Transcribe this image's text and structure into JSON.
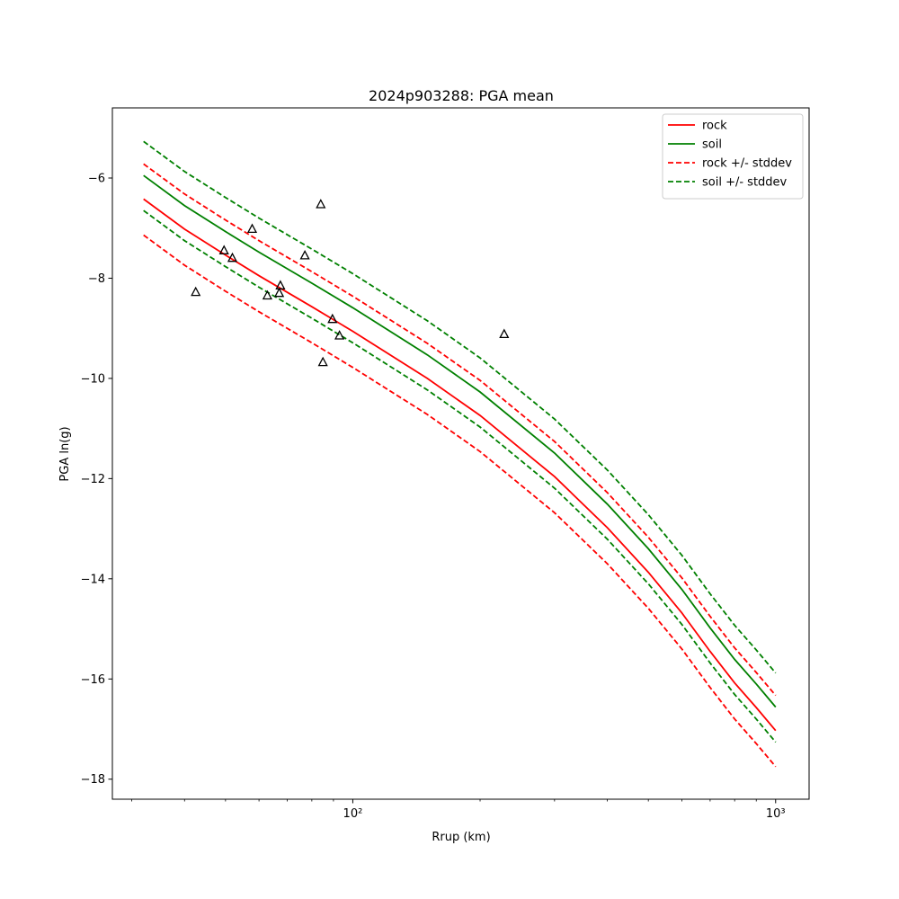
{
  "chart_data": {
    "type": "line",
    "title": "2024p903288: PGA mean",
    "xlabel": "Rrup (km)",
    "ylabel": "PGA ln(g)",
    "x_scale": "log",
    "xlim": [
      27,
      1200
    ],
    "ylim": [
      -18.4,
      -4.6
    ],
    "grid": false,
    "legend_position": "top-right",
    "x_ticks": [
      {
        "value": 100,
        "label": "10²"
      },
      {
        "value": 1000,
        "label": "10³"
      }
    ],
    "y_ticks": [
      -18,
      -16,
      -14,
      -12,
      -10,
      -8,
      -6
    ],
    "x": [
      32,
      40,
      50,
      60,
      80,
      100,
      150,
      200,
      300,
      400,
      500,
      600,
      700,
      800,
      900,
      1000
    ],
    "series": [
      {
        "name": "rock",
        "color": "#ff0000",
        "style": "solid",
        "values": [
          -6.42,
          -7.02,
          -7.54,
          -7.95,
          -8.57,
          -9.06,
          -10.0,
          -10.74,
          -11.96,
          -12.98,
          -13.87,
          -14.68,
          -15.45,
          -16.08,
          -16.57,
          -17.03
        ]
      },
      {
        "name": "soil",
        "color": "#008000",
        "style": "solid",
        "values": [
          -5.95,
          -6.55,
          -7.07,
          -7.48,
          -8.1,
          -8.59,
          -9.53,
          -10.27,
          -11.49,
          -12.51,
          -13.4,
          -14.21,
          -14.98,
          -15.61,
          -16.1,
          -16.56
        ]
      },
      {
        "name": "rock +/- stddev",
        "color": "#ff0000",
        "style": "dashed",
        "values": [
          -5.72,
          -6.32,
          -6.84,
          -7.25,
          -7.87,
          -8.36,
          -9.3,
          -10.04,
          -11.26,
          -12.28,
          -13.17,
          -13.98,
          -14.75,
          -15.38,
          -15.87,
          -16.33
        ]
      },
      {
        "name": "",
        "color": "#ff0000",
        "style": "dashed",
        "values": [
          -7.14,
          -7.74,
          -8.26,
          -8.67,
          -9.29,
          -9.78,
          -10.72,
          -11.46,
          -12.68,
          -13.7,
          -14.59,
          -15.4,
          -16.17,
          -16.8,
          -17.29,
          -17.75
        ]
      },
      {
        "name": "soil +/- stddev",
        "color": "#008000",
        "style": "dashed",
        "values": [
          -5.27,
          -5.87,
          -6.39,
          -6.8,
          -7.42,
          -7.91,
          -8.85,
          -9.59,
          -10.81,
          -11.83,
          -12.72,
          -13.53,
          -14.3,
          -14.93,
          -15.42,
          -15.88
        ]
      },
      {
        "name": "",
        "color": "#008000",
        "style": "dashed",
        "values": [
          -6.65,
          -7.25,
          -7.77,
          -8.18,
          -8.8,
          -9.29,
          -10.23,
          -10.97,
          -12.19,
          -13.21,
          -14.1,
          -14.91,
          -15.68,
          -16.31,
          -16.8,
          -17.26
        ]
      }
    ],
    "observations": {
      "marker": "triangle-open",
      "color": "#000000",
      "points": [
        {
          "x": 42.5,
          "y": -8.28
        },
        {
          "x": 49.6,
          "y": -7.45
        },
        {
          "x": 51.9,
          "y": -7.6
        },
        {
          "x": 57.8,
          "y": -7.02
        },
        {
          "x": 62.8,
          "y": -8.35
        },
        {
          "x": 67.0,
          "y": -8.3
        },
        {
          "x": 67.4,
          "y": -8.15
        },
        {
          "x": 77.0,
          "y": -7.55
        },
        {
          "x": 84.0,
          "y": -6.53
        },
        {
          "x": 85.0,
          "y": -9.68
        },
        {
          "x": 89.5,
          "y": -8.82
        },
        {
          "x": 93.0,
          "y": -9.15
        },
        {
          "x": 228.0,
          "y": -9.12
        }
      ]
    }
  }
}
